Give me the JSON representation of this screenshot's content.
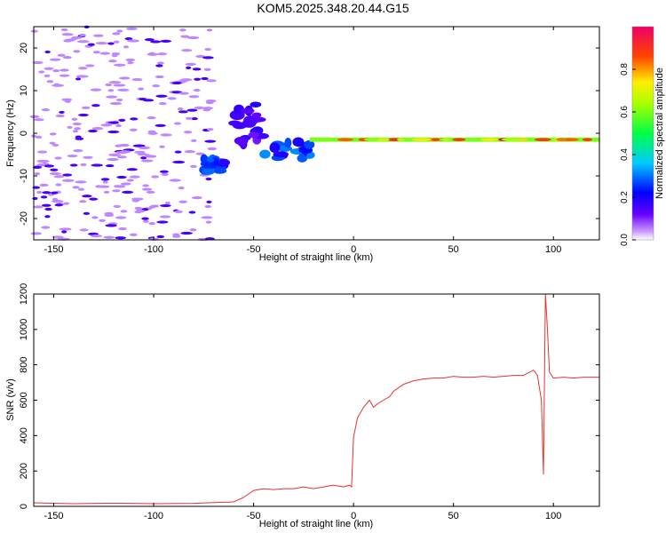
{
  "title": "KOM5.2025.348.20.44.G15",
  "chart_data": [
    {
      "type": "heatmap",
      "xlabel": "Height of straight line (km)",
      "ylabel": "Frequency (Hz)",
      "xlim": [
        -160,
        123
      ],
      "ylim": [
        -25,
        25
      ],
      "xticks": [
        -150,
        -100,
        -50,
        0,
        50,
        100
      ],
      "yticks": [
        -20,
        -10,
        0,
        10,
        20
      ],
      "colorbar": {
        "label": "Normalized spectral amplitude",
        "range": [
          0,
          1
        ],
        "ticks": [
          0.0,
          0.2,
          0.4,
          0.6,
          0.8
        ]
      },
      "features": [
        {
          "x_range": [
            -160,
            -70
          ],
          "freq_range": [
            -25,
            25
          ],
          "amplitude": 0.1,
          "pattern": "scattered noise"
        },
        {
          "x_range": [
            -75,
            -65
          ],
          "freq_range": [
            -9,
            -6
          ],
          "amplitude": 0.25
        },
        {
          "x_range": [
            -60,
            -45
          ],
          "freq_range": [
            -3,
            7
          ],
          "amplitude": 0.15
        },
        {
          "x_range": [
            -45,
            -22
          ],
          "freq_range": [
            -6,
            -2
          ],
          "amplitude": 0.25
        },
        {
          "x_range": [
            -22,
            123
          ],
          "freq_range": [
            -2,
            -1
          ],
          "amplitude": 0.6,
          "peak_amplitude": 1.0
        }
      ]
    },
    {
      "type": "line",
      "xlabel": "Height of straight line (km)",
      "ylabel": "SNR (v/v)",
      "xlim": [
        -160,
        123
      ],
      "ylim": [
        0,
        1200
      ],
      "xticks": [
        -150,
        -100,
        -50,
        0,
        50,
        100
      ],
      "yticks": [
        0,
        200,
        400,
        600,
        800,
        1000,
        1200
      ],
      "color": "#e8312f",
      "x": [
        -160,
        -140,
        -120,
        -100,
        -80,
        -60,
        -55,
        -50,
        -45,
        -40,
        -35,
        -30,
        -25,
        -20,
        -15,
        -10,
        -5,
        -2,
        -1,
        0,
        2,
        5,
        8,
        10,
        12,
        15,
        18,
        20,
        25,
        30,
        35,
        40,
        45,
        50,
        55,
        60,
        65,
        70,
        75,
        80,
        85,
        90,
        92,
        94,
        95,
        96,
        97,
        98,
        100,
        105,
        110,
        115,
        123
      ],
      "y": [
        20,
        15,
        18,
        15,
        17,
        25,
        50,
        90,
        100,
        95,
        100,
        100,
        110,
        100,
        110,
        120,
        110,
        120,
        110,
        390,
        500,
        560,
        600,
        560,
        580,
        600,
        620,
        650,
        690,
        710,
        720,
        725,
        725,
        735,
        730,
        730,
        735,
        730,
        735,
        740,
        740,
        770,
        740,
        600,
        180,
        1230,
        1000,
        760,
        725,
        730,
        725,
        730,
        730
      ]
    }
  ]
}
